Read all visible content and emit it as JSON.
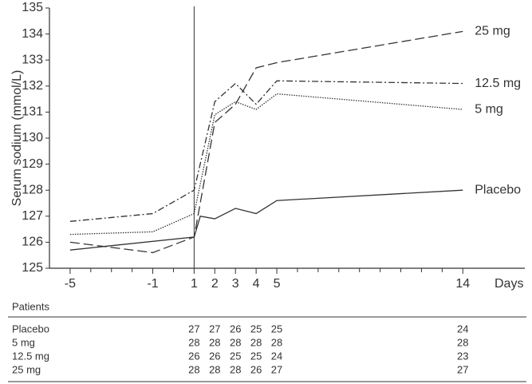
{
  "chart_data": {
    "type": "line",
    "y_label": "Serum sodium (mmol/L)",
    "x_label": "Days",
    "xlim": [
      -6,
      17
    ],
    "ylim": [
      125,
      135
    ],
    "xticks": [
      -5,
      -1,
      1,
      2,
      3,
      4,
      5,
      14
    ],
    "xticks_minor": [
      -4,
      -3,
      -2,
      0,
      6,
      7,
      8,
      9,
      10,
      11,
      12,
      13
    ],
    "yticks": [
      125,
      126,
      127,
      128,
      129,
      130,
      131,
      132,
      133,
      134,
      135
    ],
    "vline": 1,
    "series": [
      {
        "name": "25 mg",
        "color": "#333333",
        "dash": "12 5",
        "x": [
          -5,
          -1,
          1,
          2,
          3,
          4,
          5,
          14
        ],
        "values": [
          126.0,
          125.6,
          126.2,
          130.6,
          131.3,
          132.7,
          132.9,
          134.1
        ]
      },
      {
        "name": "12.5 mg",
        "color": "#333333",
        "dash": "8 3 2 3",
        "x": [
          -5,
          -1,
          1,
          2,
          3,
          4,
          5,
          14
        ],
        "values": [
          126.8,
          127.1,
          128.0,
          131.4,
          132.1,
          131.3,
          132.2,
          132.1
        ]
      },
      {
        "name": "5 mg",
        "color": "#333333",
        "dash": "1.5 1.5",
        "x": [
          -5,
          -1,
          1,
          2,
          3,
          4,
          5,
          14
        ],
        "values": [
          126.3,
          126.4,
          127.1,
          130.9,
          131.4,
          131.1,
          131.7,
          131.1
        ]
      },
      {
        "name": "Placebo",
        "color": "#333333",
        "dash": "",
        "x": [
          -5,
          1,
          1.3,
          2,
          3,
          4,
          5,
          14
        ],
        "values": [
          125.7,
          126.2,
          127.0,
          126.9,
          127.3,
          127.1,
          127.6,
          128.0
        ]
      }
    ]
  },
  "table": {
    "title": "Patients",
    "rows": [
      {
        "label": "Placebo",
        "values": [
          27,
          27,
          26,
          25,
          25,
          24
        ]
      },
      {
        "label": "5 mg",
        "values": [
          28,
          28,
          28,
          28,
          28,
          28
        ]
      },
      {
        "label": "12.5 mg",
        "values": [
          26,
          26,
          25,
          25,
          24,
          23
        ]
      },
      {
        "label": "25 mg",
        "values": [
          28,
          28,
          28,
          26,
          27,
          27
        ]
      }
    ]
  }
}
